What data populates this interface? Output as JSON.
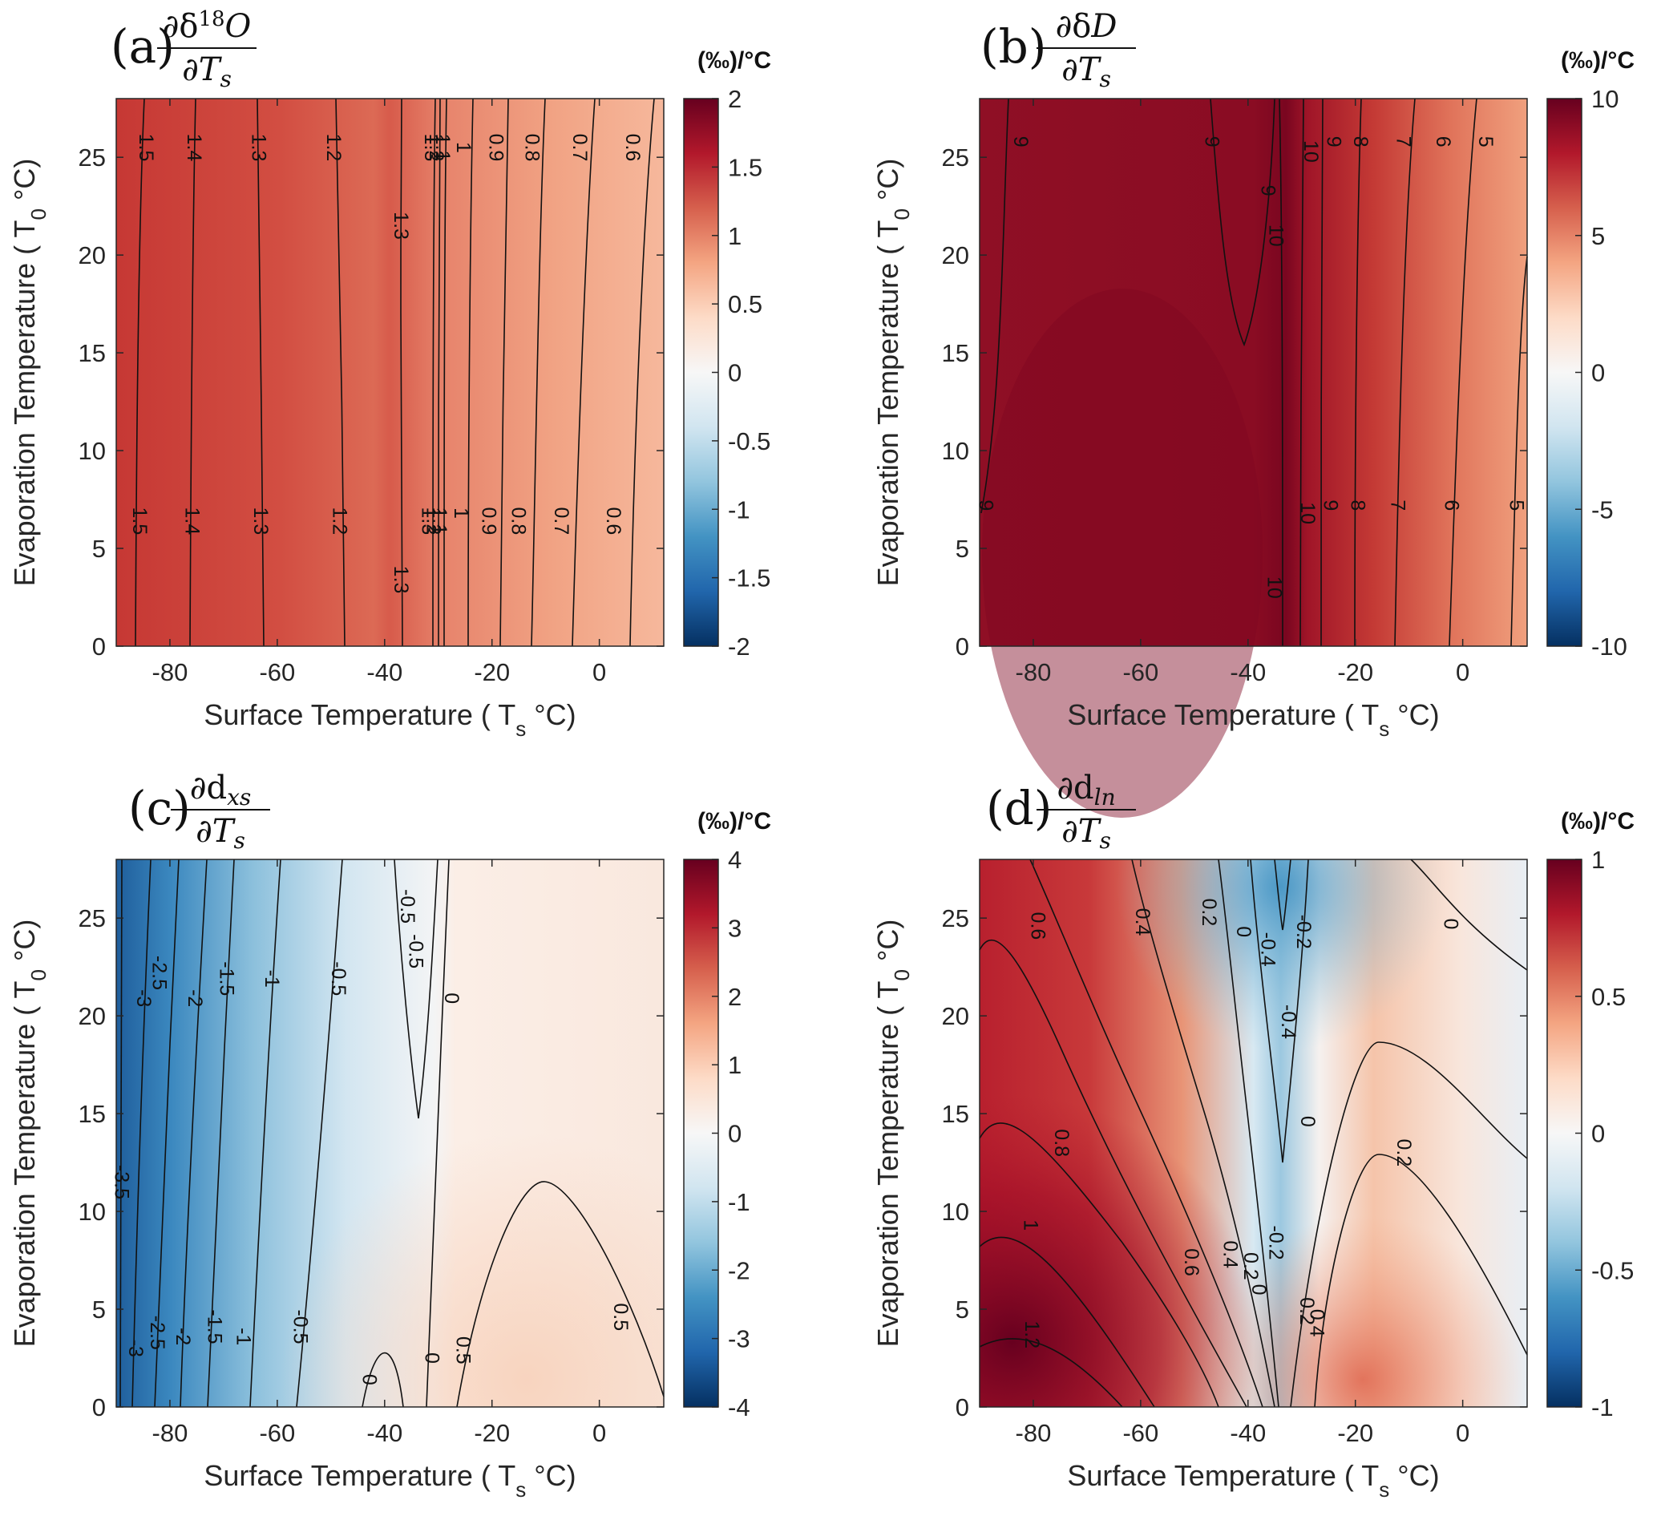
{
  "figure": {
    "units_label": "(‰)/°C",
    "xlabel": {
      "text": "Surface Temperature ( T",
      "sub": "s",
      "tail": " °C)"
    },
    "ylabel": {
      "text": "Evaporation Temperature ( T",
      "sub": "0",
      "tail": " °C)"
    }
  },
  "chart_data": [
    {
      "id": "a",
      "type": "heatmap",
      "panel_label": "(a)",
      "title_parts": {
        "num": "∂δ",
        "sup": "18",
        "var": "O",
        "den": "∂T",
        "den_sub": "s"
      },
      "xlim": [
        -90,
        12
      ],
      "ylim": [
        0,
        28
      ],
      "xticks": [
        -80,
        -60,
        -40,
        -20,
        0
      ],
      "yticks": [
        0,
        5,
        10,
        15,
        20,
        25
      ],
      "clim": [
        -2,
        2
      ],
      "cticks": [
        "-2",
        "-1.5",
        "-1",
        "-0.5",
        "0",
        "0.5",
        "1",
        "1.5",
        "2"
      ],
      "xlabel": "Surface Temperature (Ts °C)",
      "ylabel": "Evaporation Temperature (T0 °C)",
      "contours": [
        {
          "level": 1.5,
          "x_bottom": -86,
          "x_top": -84
        },
        {
          "level": 1.4,
          "x_bottom": -76,
          "x_top": -75
        },
        {
          "level": 1.3,
          "x_bottom": -63,
          "x_top": -64
        },
        {
          "level": 1.2,
          "x_bottom": -48,
          "x_top": -50
        },
        {
          "level": 1.3,
          "x_bottom": -37,
          "x_top": -37
        },
        {
          "level": 1.3,
          "x_bottom": -32,
          "x_top": -31
        },
        {
          "level": 1.2,
          "x_bottom": -31,
          "x_top": -30
        },
        {
          "level": 1.1,
          "x_bottom": -29,
          "x_top": -28
        },
        {
          "level": 1.0,
          "x_bottom": -26,
          "x_top": -25
        },
        {
          "level": 0.9,
          "x_bottom": -21,
          "x_top": -19
        },
        {
          "level": 0.8,
          "x_bottom": -16,
          "x_top": -12
        },
        {
          "level": 0.7,
          "x_bottom": -8,
          "x_top": -3
        },
        {
          "level": 0.6,
          "x_bottom": 2,
          "x_top": 7
        }
      ],
      "labels": [
        {
          "text": "1.5",
          "x": -84.5,
          "y": 25.5
        },
        {
          "text": "1.4",
          "x": -75.5,
          "y": 25.5
        },
        {
          "text": "1.3",
          "x": -63.5,
          "y": 25.5
        },
        {
          "text": "1.2",
          "x": -49.5,
          "y": 25.5
        },
        {
          "text": "1.3",
          "x": -37,
          "y": 21.5
        },
        {
          "text": "1.3",
          "x": -31.3,
          "y": 25.5
        },
        {
          "text": "1.2",
          "x": -30.4,
          "y": 25.5
        },
        {
          "text": "1.1",
          "x": -29.2,
          "y": 25.5
        },
        {
          "text": "1",
          "x": -25.3,
          "y": 25.5
        },
        {
          "text": "0.9",
          "x": -19.3,
          "y": 25.5
        },
        {
          "text": "0.8",
          "x": -12.6,
          "y": 25.5
        },
        {
          "text": "0.7",
          "x": -3.7,
          "y": 25.5
        },
        {
          "text": "0.6",
          "x": 6.2,
          "y": 25.5
        },
        {
          "text": "1.5",
          "x": -85.7,
          "y": 6.4
        },
        {
          "text": "1.4",
          "x": -75.9,
          "y": 6.4
        },
        {
          "text": "1.3",
          "x": -63.1,
          "y": 6.4
        },
        {
          "text": "1.2",
          "x": -48.4,
          "y": 6.4
        },
        {
          "text": "1.3",
          "x": -37,
          "y": 3.4
        },
        {
          "text": "1.3",
          "x": -31.8,
          "y": 6.4
        },
        {
          "text": "1.2",
          "x": -30.9,
          "y": 6.4
        },
        {
          "text": "1.1",
          "x": -29.8,
          "y": 6.4
        },
        {
          "text": "1",
          "x": -25.8,
          "y": 6.8
        },
        {
          "text": "0.9",
          "x": -20.6,
          "y": 6.4
        },
        {
          "text": "0.8",
          "x": -15.1,
          "y": 6.4
        },
        {
          "text": "0.7",
          "x": -7.1,
          "y": 6.4
        },
        {
          "text": "0.6",
          "x": 2.6,
          "y": 6.4
        }
      ]
    },
    {
      "id": "b",
      "type": "heatmap",
      "panel_label": "(b)",
      "title_parts": {
        "num": "∂δ",
        "sup": "",
        "var": "D",
        "den": "∂T",
        "den_sub": "s"
      },
      "xlim": [
        -90,
        12
      ],
      "ylim": [
        0,
        28
      ],
      "xticks": [
        -80,
        -60,
        -40,
        -20,
        0
      ],
      "yticks": [
        0,
        5,
        10,
        15,
        20,
        25
      ],
      "clim": [
        -10,
        10
      ],
      "cticks": [
        "-10",
        "-5",
        "0",
        "5",
        "10"
      ],
      "xlabel": "Surface Temperature (Ts °C)",
      "ylabel": "Evaporation Temperature (T0 °C)",
      "contours": [
        {
          "level": 10,
          "x_bottom": -37,
          "x_top": -34
        },
        {
          "level": 10,
          "x_bottom": -28,
          "x_top": -27
        },
        {
          "level": 9,
          "x_bottom": -25,
          "x_top": -23
        },
        {
          "level": 8,
          "x_bottom": -19,
          "x_top": -16
        },
        {
          "level": 7,
          "x_bottom": -11,
          "x_top": -7
        },
        {
          "level": 6,
          "x_bottom": -1,
          "x_top": 2
        },
        {
          "level": 5,
          "x_bottom": 10,
          "x_top": 12
        }
      ],
      "labels": [
        {
          "text": "9",
          "x": -82.4,
          "y": 25.8
        },
        {
          "text": "9",
          "x": -46.8,
          "y": 25.8
        },
        {
          "text": "9",
          "x": -36.3,
          "y": 23.3
        },
        {
          "text": "10",
          "x": -34.8,
          "y": 21
        },
        {
          "text": "10",
          "x": -28.3,
          "y": 25.3
        },
        {
          "text": "9",
          "x": -24.1,
          "y": 25.8
        },
        {
          "text": "8",
          "x": -19.1,
          "y": 25.8
        },
        {
          "text": "7",
          "x": -11.1,
          "y": 25.8
        },
        {
          "text": "6",
          "x": -3.7,
          "y": 25.8
        },
        {
          "text": "5",
          "x": 4.2,
          "y": 25.8
        },
        {
          "text": "9",
          "x": -88.9,
          "y": 7.2
        },
        {
          "text": "10",
          "x": -35.1,
          "y": 3
        },
        {
          "text": "10",
          "x": -28.9,
          "y": 6.8
        },
        {
          "text": "9",
          "x": -24.7,
          "y": 7.2
        },
        {
          "text": "8",
          "x": -19.6,
          "y": 7.2
        },
        {
          "text": "7",
          "x": -12.1,
          "y": 7.2
        },
        {
          "text": "6",
          "x": -2.1,
          "y": 7.2
        },
        {
          "text": "5",
          "x": 10,
          "y": 7.2
        }
      ]
    },
    {
      "id": "c",
      "type": "heatmap",
      "panel_label": "(c)",
      "title_parts": {
        "num": "∂d",
        "sup": "",
        "var": "xs",
        "den": "∂T",
        "den_sub": "s"
      },
      "xlim": [
        -90,
        12
      ],
      "ylim": [
        0,
        28
      ],
      "xticks": [
        -80,
        -60,
        -40,
        -20,
        0
      ],
      "yticks": [
        0,
        5,
        10,
        15,
        20,
        25
      ],
      "clim": [
        -4,
        4
      ],
      "cticks": [
        "-4",
        "-3",
        "-2",
        "-1",
        "0",
        "1",
        "2",
        "3",
        "4"
      ],
      "xlabel": "Surface Temperature (Ts °C)",
      "ylabel": "Evaporation Temperature (T0 °C)",
      "contours": [
        {
          "level": -3.5,
          "x_bottom": -89,
          "x_top": -89
        },
        {
          "level": -3,
          "x_bottom": -87,
          "x_top": -84
        },
        {
          "level": -2.5,
          "x_bottom": -83,
          "x_top": -79
        },
        {
          "level": -2,
          "x_bottom": -79,
          "x_top": -74
        },
        {
          "level": -1.5,
          "x_bottom": -74,
          "x_top": -69
        },
        {
          "level": -1,
          "x_bottom": -67,
          "x_top": -60
        },
        {
          "level": -0.5,
          "x_bottom": -57,
          "x_top": -48
        },
        {
          "level": 0,
          "x_bottom": -31,
          "x_top": -27
        },
        {
          "level": 0.5,
          "x_bottom": -27,
          "x_top": 12
        }
      ],
      "labels": [
        {
          "text": "-3.5",
          "x": -89,
          "y": 11.5
        },
        {
          "text": "-3",
          "x": -84.9,
          "y": 20.9
        },
        {
          "text": "-2.5",
          "x": -82,
          "y": 22.2
        },
        {
          "text": "-2",
          "x": -75.4,
          "y": 20.9
        },
        {
          "text": "-1.5",
          "x": -69.5,
          "y": 21.9
        },
        {
          "text": "-1",
          "x": -61,
          "y": 21.9
        },
        {
          "text": "-0.5",
          "x": -48.6,
          "y": 21.9
        },
        {
          "text": "-0.5",
          "x": -35.8,
          "y": 25.6
        },
        {
          "text": "-0.5",
          "x": -34.2,
          "y": 23.3
        },
        {
          "text": "0",
          "x": -27.6,
          "y": 20.9
        },
        {
          "text": "-3",
          "x": -86.4,
          "y": 3
        },
        {
          "text": "-2.5",
          "x": -82.4,
          "y": 3.8
        },
        {
          "text": "-2",
          "x": -77.6,
          "y": 3.6
        },
        {
          "text": "-1.5",
          "x": -71.7,
          "y": 4.1
        },
        {
          "text": "-1",
          "x": -66.3,
          "y": 3.6
        },
        {
          "text": "-0.5",
          "x": -55.7,
          "y": 4.1
        },
        {
          "text": "0",
          "x": -42.9,
          "y": 1.4
        },
        {
          "text": "0",
          "x": -31.2,
          "y": 2.5
        },
        {
          "text": "0.5",
          "x": -25.4,
          "y": 2.9
        },
        {
          "text": "0.5",
          "x": 3.9,
          "y": 4.6
        }
      ]
    },
    {
      "id": "d",
      "type": "heatmap",
      "panel_label": "(d)",
      "title_parts": {
        "num": "∂d",
        "sup": "",
        "var": "ln",
        "den": "∂T",
        "den_sub": "s"
      },
      "xlim": [
        -90,
        12
      ],
      "ylim": [
        0,
        28
      ],
      "xticks": [
        -80,
        -60,
        -40,
        -20,
        0
      ],
      "yticks": [
        0,
        5,
        10,
        15,
        20,
        25
      ],
      "clim": [
        -1,
        1
      ],
      "cticks": [
        "-1",
        "-0.5",
        "0",
        "0.5",
        "1"
      ],
      "xlabel": "Surface Temperature (Ts °C)",
      "ylabel": "Evaporation Temperature (T0 °C)",
      "contours": [
        {
          "level": 1.2,
          "region": "bottom-left"
        },
        {
          "level": 1,
          "region": "bottom-left"
        },
        {
          "level": 0.8,
          "region": "left"
        },
        {
          "level": 0.6,
          "region": "left"
        },
        {
          "level": 0.4,
          "region": "center"
        },
        {
          "level": 0.2,
          "region": "center"
        },
        {
          "level": 0,
          "region": "center"
        },
        {
          "level": -0.2,
          "region": "center"
        },
        {
          "level": -0.4,
          "region": "center"
        },
        {
          "level": 0.2,
          "region": "right"
        },
        {
          "level": 0.4,
          "region": "right"
        },
        {
          "level": 0,
          "region": "top-right"
        }
      ],
      "labels": [
        {
          "text": "0.6",
          "x": -79.2,
          "y": 24.6
        },
        {
          "text": "0.4",
          "x": -59.7,
          "y": 24.8
        },
        {
          "text": "0.2",
          "x": -47.3,
          "y": 25.3
        },
        {
          "text": "0",
          "x": -40.9,
          "y": 24.3
        },
        {
          "text": "-0.4",
          "x": -36.3,
          "y": 23.4
        },
        {
          "text": "-0.2",
          "x": -29.7,
          "y": 24.3
        },
        {
          "text": "-0.4",
          "x": -32.5,
          "y": 19.7
        },
        {
          "text": "0",
          "x": -28.9,
          "y": 14.6
        },
        {
          "text": "0.8",
          "x": -74.8,
          "y": 13.5
        },
        {
          "text": "0.2",
          "x": -11,
          "y": 13
        },
        {
          "text": "0",
          "x": -2.3,
          "y": 24.7
        },
        {
          "text": "1",
          "x": -80.5,
          "y": 9.3
        },
        {
          "text": "1.2",
          "x": -80.3,
          "y": 3.7
        },
        {
          "text": "0.6",
          "x": -50.6,
          "y": 7.4
        },
        {
          "text": "0.4",
          "x": -43.3,
          "y": 7.8
        },
        {
          "text": "0.2",
          "x": -39.5,
          "y": 7.2
        },
        {
          "text": "0",
          "x": -38,
          "y": 6
        },
        {
          "text": "-0.2",
          "x": -34.8,
          "y": 8.4
        },
        {
          "text": "0.2",
          "x": -29.1,
          "y": 4.9
        },
        {
          "text": "0.4",
          "x": -27.2,
          "y": 4.3
        }
      ]
    }
  ]
}
